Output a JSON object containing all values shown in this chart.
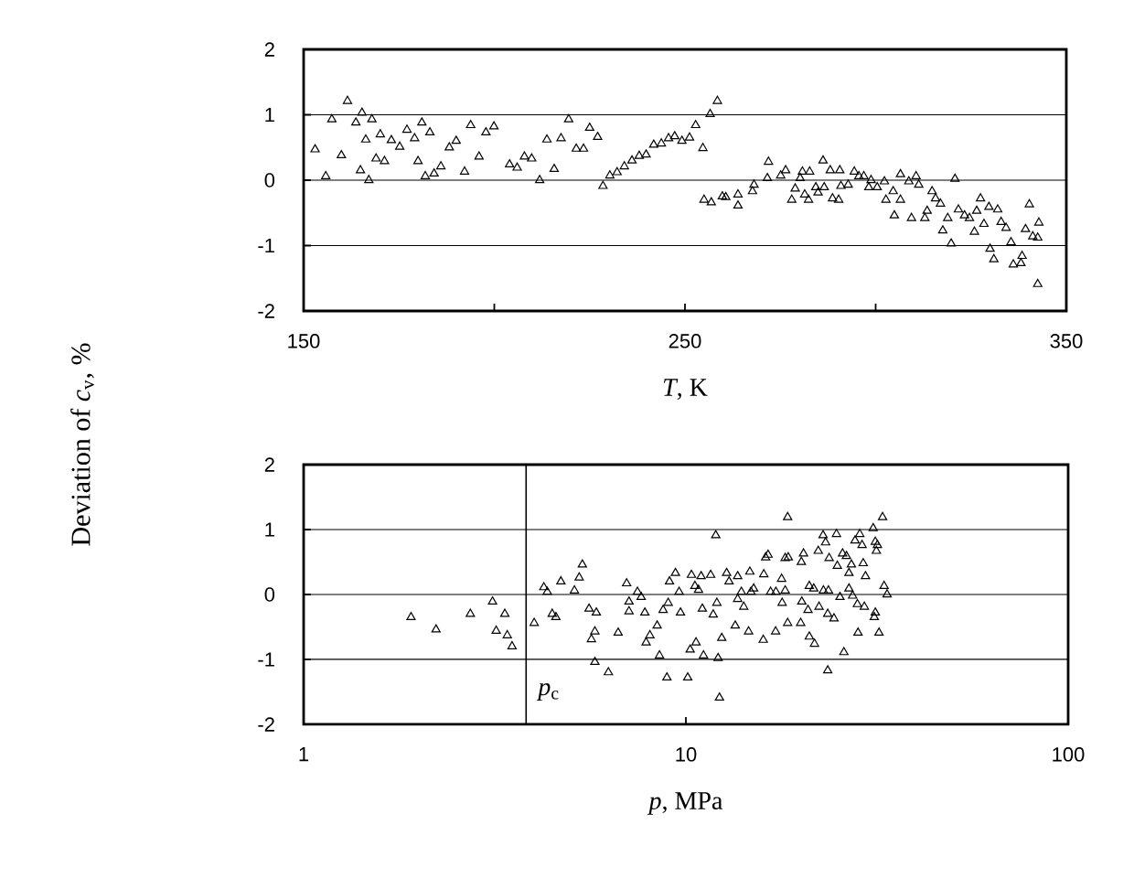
{
  "chart_data": [
    {
      "type": "scatter",
      "xlabel": "*T*, K",
      "ylabel": "Deviation of *c*$_{v}$, %",
      "xlim": [
        150,
        350
      ],
      "ylim": [
        -2,
        2
      ],
      "xticks": [
        150,
        {
          "value": 200,
          "label": null
        },
        250,
        {
          "value": 300,
          "label": null
        },
        350
      ],
      "yticks": [
        -2,
        -1,
        0,
        1,
        2
      ],
      "grid": "y",
      "marker": "triangle",
      "series": [
        {
          "color": "#000000",
          "x": [
            153.0,
            155.8,
            157.4,
            159.9,
            161.5,
            163.7,
            165.3,
            164.9,
            167.1,
            166.3,
            167.9,
            169.0,
            170.1,
            171.2,
            173.0,
            175.2,
            177.1,
            179.1,
            181.0,
            180.0,
            181.9,
            183.1,
            184.2,
            186.0,
            188.2,
            190.0,
            192.2,
            193.8,
            196.0,
            197.8,
            199.9,
            204.0,
            206.0,
            207.9,
            209.8,
            211.9,
            213.8,
            215.7,
            217.5,
            219.5,
            221.5,
            223.4,
            225.0,
            227.1,
            228.5,
            230.3,
            232.2,
            234.1,
            236.1,
            238.0,
            239.8,
            241.8,
            243.8,
            245.7,
            247.3,
            249.2,
            251.2,
            252.8,
            254.7,
            256.6,
            258.5,
            255.0,
            256.9,
            259.8,
            260.7,
            263.9,
            263.9,
            267.7,
            268.1,
            271.6,
            271.9,
            275.1,
            276.4,
            278.0,
            278.9,
            280.2,
            280.8,
            281.4,
            282.4,
            282.7,
            284.3,
            284.9,
            286.2,
            286.5,
            288.1,
            288.7,
            290.3,
            290.6,
            290.9,
            292.8,
            294.4,
            295.6,
            296.9,
            298.2,
            298.8,
            300.4,
            302.3,
            302.7,
            304.6,
            304.9,
            306.5,
            306.5,
            308.7,
            309.4,
            310.6,
            311.3,
            312.9,
            313.5,
            314.8,
            315.7,
            317.0,
            317.6,
            318.9,
            319.8,
            320.8,
            321.7,
            323.3,
            324.6,
            325.9,
            326.5,
            327.5,
            328.4,
            329.7,
            330.0,
            331.0,
            332.0,
            332.9,
            334.2,
            335.5,
            336.1,
            338.1,
            338.4,
            339.3,
            340.3,
            341.2,
            342.5,
            342.8,
            342.5
          ],
          "values": [
            0.47,
            0.06,
            0.93,
            0.38,
            1.21,
            0.88,
            1.03,
            0.15,
            0.0,
            0.62,
            0.93,
            0.33,
            0.7,
            0.29,
            0.61,
            0.51,
            0.77,
            0.64,
            0.88,
            0.29,
            0.06,
            0.73,
            0.1,
            0.21,
            0.5,
            0.6,
            0.13,
            0.84,
            0.36,
            0.73,
            0.82,
            0.24,
            0.19,
            0.36,
            0.33,
            0.0,
            0.62,
            0.17,
            0.64,
            0.93,
            0.48,
            0.48,
            0.8,
            0.66,
            -0.09,
            0.07,
            0.12,
            0.21,
            0.3,
            0.37,
            0.39,
            0.54,
            0.56,
            0.64,
            0.67,
            0.6,
            0.65,
            0.84,
            0.49,
            1.01,
            1.21,
            -0.3,
            -0.34,
            -0.25,
            -0.26,
            -0.22,
            -0.39,
            -0.17,
            -0.07,
            0.03,
            0.28,
            0.07,
            0.15,
            -0.3,
            -0.13,
            0.03,
            0.13,
            -0.22,
            -0.3,
            0.13,
            -0.11,
            -0.19,
            0.3,
            -0.11,
            0.15,
            -0.28,
            -0.3,
            0.15,
            -0.09,
            -0.07,
            0.13,
            0.06,
            0.06,
            -0.11,
            0.0,
            -0.11,
            -0.02,
            -0.3,
            -0.17,
            -0.54,
            0.09,
            -0.3,
            -0.02,
            -0.58,
            0.06,
            -0.07,
            -0.58,
            -0.47,
            -0.17,
            -0.28,
            -0.36,
            -0.77,
            -0.58,
            -0.97,
            0.02,
            -0.45,
            -0.54,
            -0.58,
            -0.79,
            -0.47,
            -0.28,
            -0.67,
            -0.41,
            -1.05,
            -1.21,
            -0.45,
            -0.64,
            -0.73,
            -0.95,
            -1.29,
            -1.27,
            -1.16,
            -0.75,
            -0.37,
            -0.86,
            -1.59,
            -0.65,
            -0.88
          ]
        }
      ]
    },
    {
      "type": "scatter",
      "xlabel": "*p*, MPa",
      "xlim": [
        1,
        100
      ],
      "ylim": [
        -2,
        2
      ],
      "log": "x",
      "xticks": [
        1,
        10,
        100
      ],
      "yticks": [
        -2,
        -1,
        0,
        1,
        2
      ],
      "grid": "y",
      "marker": "triangle",
      "ref_lines": [
        {
          "axis": "x",
          "value": 3.82,
          "label": "*p*$_{c}$",
          "color": "#000000"
        }
      ],
      "series": [
        {
          "color": "#000000",
          "x": [
            1.91,
            2.22,
            2.73,
            3.12,
            3.19,
            3.36,
            3.41,
            3.51,
            4.01,
            4.25,
            4.34,
            4.47,
            4.57,
            4.71,
            5.11,
            5.26,
            5.36,
            5.58,
            5.83,
            5.66,
            5.78,
            5.78,
            6.27,
            6.65,
            7.0,
            7.1,
            7.1,
            7.47,
            7.64,
            7.81,
            7.87,
            8.05,
            8.41,
            8.53,
            8.72,
            8.92,
            8.99,
            9.06,
            9.39,
            9.6,
            9.68,
            10.11,
            10.26,
            10.34,
            10.63,
            10.56,
            10.79,
            10.96,
            11.04,
            11.12,
            11.61,
            11.79,
            11.97,
            12.05,
            12.14,
            12.24,
            12.41,
            12.78,
            12.97,
            13.46,
            13.66,
            13.66,
            13.97,
            14.17,
            14.59,
            14.7,
            14.8,
            15.04,
            15.94,
            15.99,
            16.17,
            16.41,
            16.66,
            17.17,
            17.2,
            17.8,
            17.86,
            18.19,
            18.19,
            18.46,
            18.46,
            18.53,
            19.97,
            20.05,
            20.1,
            20.31,
            20.87,
            21.03,
            21.03,
            21.6,
            21.7,
            22.3,
            22.2,
            22.85,
            22.9,
            23.2,
            23.5,
            23.5,
            23.6,
            23.7,
            24.4,
            24.77,
            24.9,
            25.3,
            25.7,
            25.9,
            26.3,
            26.7,
            26.7,
            27.1,
            27.3,
            27.7,
            28.1,
            28.2,
            28.5,
            28.9,
            29.1,
            29.3,
            29.5,
            30.9,
            31.1,
            31.3,
            31.3,
            31.5,
            31.7,
            32.0,
            32.7,
            33.0,
            33.6
          ],
          "values": [
            -0.35,
            -0.54,
            -0.3,
            -0.11,
            -0.56,
            -0.3,
            -0.63,
            -0.8,
            -0.44,
            0.11,
            0.04,
            -0.3,
            -0.35,
            0.2,
            0.06,
            0.26,
            0.46,
            -0.22,
            -0.28,
            -0.69,
            -0.57,
            -1.04,
            -1.2,
            -0.59,
            0.17,
            -0.11,
            -0.26,
            0.04,
            -0.04,
            -0.28,
            -0.74,
            -0.63,
            -0.48,
            -0.94,
            -0.24,
            -1.28,
            -0.13,
            0.2,
            0.33,
            0.04,
            -0.28,
            -1.28,
            -0.85,
            0.3,
            -0.74,
            0.13,
            0.07,
            0.28,
            -0.22,
            -0.94,
            0.3,
            -0.31,
            0.91,
            -0.13,
            -0.98,
            -1.59,
            -0.67,
            0.33,
            0.2,
            -0.48,
            0.28,
            -0.07,
            0.04,
            -0.19,
            -0.57,
            0.35,
            0.04,
            0.09,
            -0.7,
            0.31,
            0.57,
            0.61,
            0.04,
            -0.57,
            0.04,
            0.24,
            -0.13,
            0.06,
            0.56,
            1.19,
            -0.44,
            0.57,
            -0.44,
            0.5,
            -0.11,
            0.63,
            -0.24,
            0.13,
            -0.65,
            0.09,
            -0.76,
            -0.19,
            0.67,
            0.91,
            0.06,
            0.8,
            -0.3,
            -1.17,
            0.06,
            0.56,
            -0.37,
            0.93,
            0.44,
            -0.04,
            0.63,
            -0.89,
            0.59,
            0.33,
            0.09,
            0.46,
            -0.02,
            0.83,
            -0.15,
            -0.59,
            0.93,
            0.76,
            0.48,
            -0.19,
            0.28,
            1.02,
            -0.35,
            0.81,
            -0.28,
            0.67,
            0.76,
            -0.59,
            1.19,
            0.13,
            0.0
          ]
        }
      ]
    }
  ]
}
